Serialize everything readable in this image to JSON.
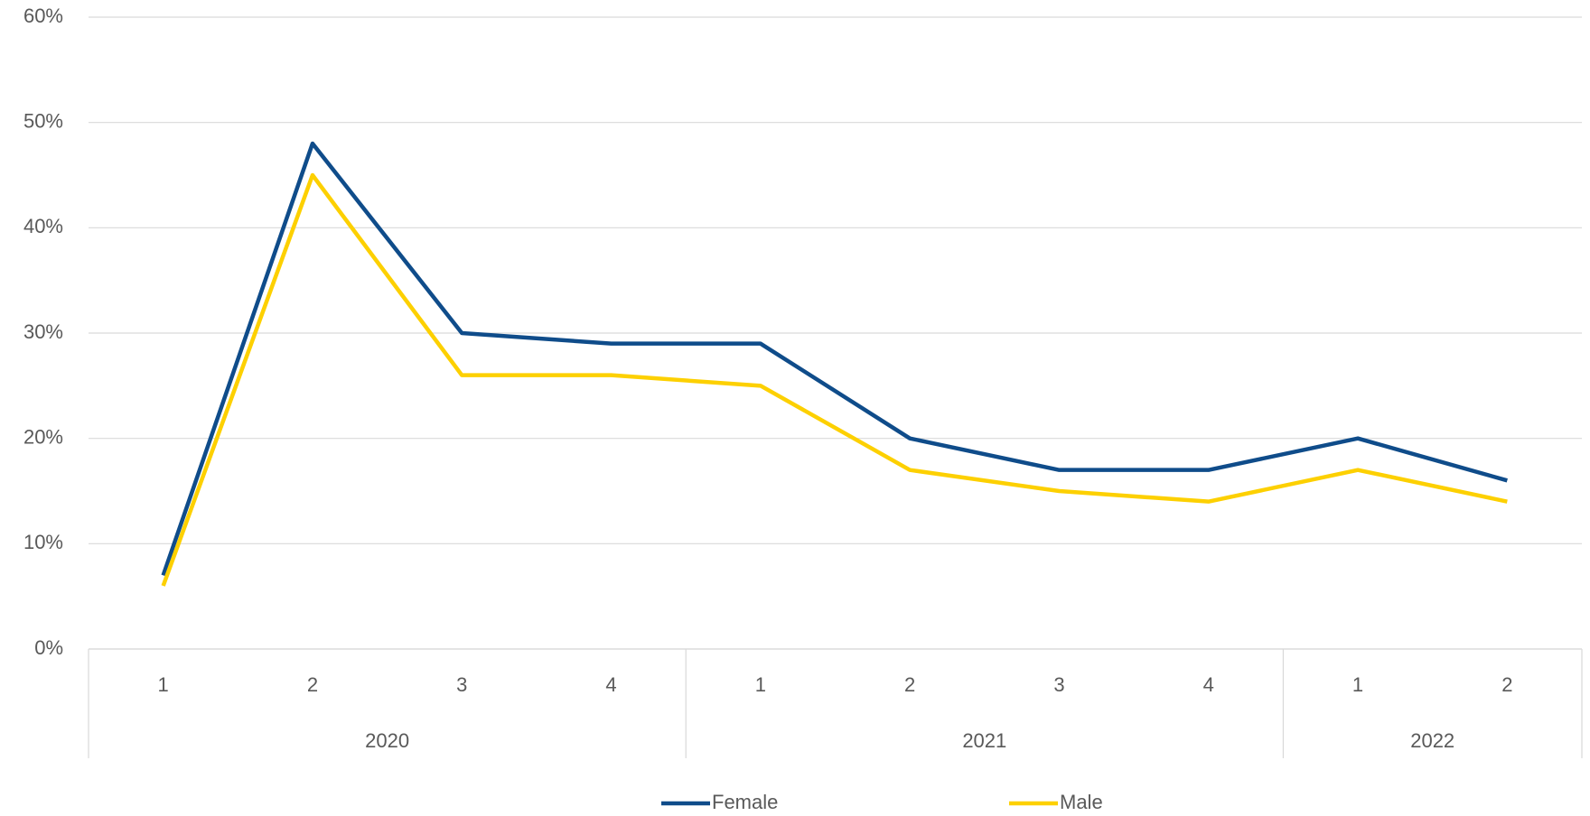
{
  "chart_data": {
    "type": "line",
    "groups": [
      {
        "label": "2020",
        "categories": [
          "1",
          "2",
          "3",
          "4"
        ]
      },
      {
        "label": "2021",
        "categories": [
          "1",
          "2",
          "3",
          "4"
        ]
      },
      {
        "label": "2022",
        "categories": [
          "1",
          "2"
        ]
      }
    ],
    "series": [
      {
        "name": "Female",
        "color": "#0f4c8a",
        "values": [
          7,
          48,
          30,
          29,
          29,
          20,
          17,
          17,
          20,
          16
        ]
      },
      {
        "name": "Male",
        "color": "#fdd000",
        "values": [
          6,
          45,
          26,
          26,
          25,
          17,
          15,
          14,
          17,
          14
        ]
      }
    ],
    "ylim": [
      0,
      60
    ],
    "yticks": [
      {
        "value": 0,
        "label": "0%"
      },
      {
        "value": 10,
        "label": "10%"
      },
      {
        "value": 20,
        "label": "20%"
      },
      {
        "value": 30,
        "label": "30%"
      },
      {
        "value": 40,
        "label": "40%"
      },
      {
        "value": 50,
        "label": "50%"
      },
      {
        "value": 60,
        "label": "60%"
      }
    ],
    "grid": true,
    "legend": "bottom"
  }
}
